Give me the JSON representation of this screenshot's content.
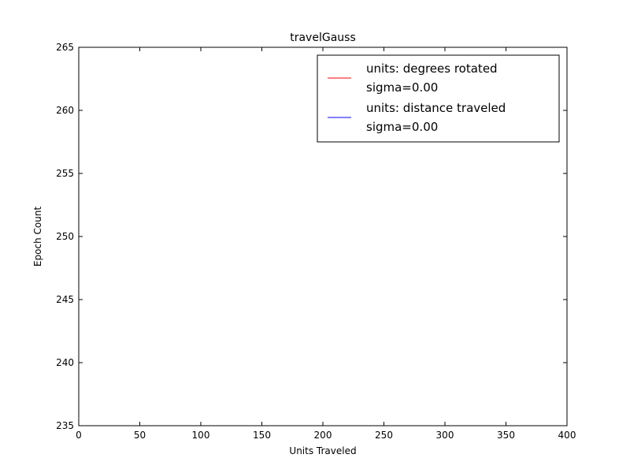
{
  "chart_data": {
    "type": "line",
    "title": "travelGauss",
    "xlabel": "Units Traveled",
    "ylabel": "Epoch Count",
    "xlim": [
      0,
      400
    ],
    "ylim": [
      235,
      265
    ],
    "x_ticks": [
      0,
      50,
      100,
      150,
      200,
      250,
      300,
      350,
      400
    ],
    "y_ticks": [
      235,
      240,
      245,
      250,
      255,
      260,
      265
    ],
    "grid": false,
    "legend_position": "top-right",
    "series": [
      {
        "label_lines": [
          "units: degrees rotated",
          "sigma=0.00"
        ],
        "color": "#ff0000",
        "points": []
      },
      {
        "label_lines": [
          "units: distance traveled",
          "sigma=0.00"
        ],
        "color": "#0000ff",
        "points": []
      }
    ]
  }
}
